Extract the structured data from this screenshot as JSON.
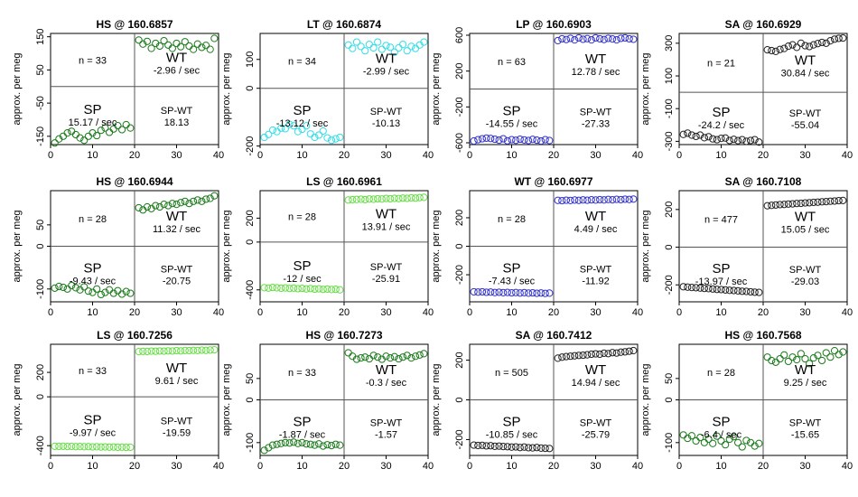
{
  "figure": {
    "y_axis_label": "approx. per meg",
    "n_prefix": "n = ",
    "left_label": "SP",
    "right_label": "WT",
    "diff_label": "SP-WT",
    "rate_suffix": " / sec"
  },
  "chart_data": [
    {
      "type": "scatter",
      "title": "HS @ 160.6857",
      "color": "#1a7a1a",
      "n": 33,
      "sp_rate": "15.17",
      "wt_rate": "-2.96",
      "diff": "18.13",
      "xlim": [
        0,
        40
      ],
      "ylim": [
        -175,
        160
      ],
      "xticks": [
        0,
        10,
        20,
        30,
        40
      ],
      "yticks": [
        150,
        50,
        -50,
        -150
      ],
      "split_x": 20,
      "hline_y": 0,
      "sp_x": [
        1,
        2,
        3,
        4,
        5,
        6,
        7,
        8,
        9,
        10,
        11,
        12,
        13,
        14,
        15,
        16,
        17,
        18,
        19
      ],
      "sp_y": [
        -170,
        -158,
        -150,
        -140,
        -135,
        -145,
        -155,
        -162,
        -150,
        -140,
        -148,
        -132,
        -125,
        -138,
        -128,
        -118,
        -130,
        -115,
        -125
      ],
      "wt_x": [
        21,
        22,
        23,
        24,
        25,
        26,
        27,
        28,
        29,
        30,
        31,
        32,
        33,
        34,
        35,
        36,
        37,
        38,
        39
      ],
      "wt_y": [
        140,
        128,
        136,
        115,
        130,
        122,
        138,
        125,
        115,
        130,
        120,
        135,
        122,
        112,
        128,
        118,
        124,
        112,
        145
      ]
    },
    {
      "type": "scatter",
      "title": "LT @ 160.6874",
      "color": "#33dde8",
      "n": 34,
      "sp_rate": "-13.12",
      "wt_rate": "-2.99",
      "diff": "-10.13",
      "xlim": [
        0,
        40
      ],
      "ylim": [
        -195,
        190
      ],
      "xticks": [
        0,
        10,
        20,
        30,
        40
      ],
      "yticks": [
        100,
        0,
        -200
      ],
      "split_x": 20,
      "hline_y": 0,
      "sp_x": [
        1,
        2,
        3,
        4,
        5,
        6,
        7,
        8,
        9,
        10,
        11,
        12,
        13,
        14,
        15,
        16,
        17,
        18,
        19
      ],
      "sp_y": [
        -170,
        -160,
        -145,
        -150,
        -138,
        -140,
        -125,
        -130,
        -150,
        -142,
        -130,
        -158,
        -170,
        -162,
        -148,
        -172,
        -180,
        -175,
        -170
      ],
      "wt_x": [
        21,
        22,
        23,
        24,
        25,
        26,
        27,
        28,
        29,
        30,
        31,
        32,
        33,
        34,
        35,
        36,
        37,
        38,
        39
      ],
      "wt_y": [
        150,
        138,
        160,
        145,
        130,
        152,
        140,
        160,
        135,
        148,
        142,
        125,
        140,
        152,
        130,
        145,
        138,
        150,
        160
      ]
    },
    {
      "type": "scatter",
      "title": "LP @ 160.6903",
      "color": "#3333cc",
      "n": 63,
      "sp_rate": "-14.55",
      "wt_rate": "12.78",
      "diff": "-27.33",
      "xlim": [
        0,
        40
      ],
      "ylim": [
        -620,
        620
      ],
      "xticks": [
        0,
        10,
        20,
        30,
        40
      ],
      "yticks": [
        600,
        200,
        -200,
        -600
      ],
      "split_x": 20,
      "hline_y": 0,
      "sp_x": [
        1,
        2,
        3,
        4,
        5,
        6,
        7,
        8,
        9,
        10,
        11,
        12,
        13,
        14,
        15,
        16,
        17,
        18,
        19
      ],
      "sp_y": [
        -580,
        -565,
        -555,
        -548,
        -552,
        -560,
        -570,
        -555,
        -578,
        -565,
        -572,
        -560,
        -568,
        -575,
        -562,
        -570,
        -580,
        -565,
        -575
      ],
      "wt_x": [
        21,
        22,
        23,
        24,
        25,
        26,
        27,
        28,
        29,
        30,
        31,
        32,
        33,
        34,
        35,
        36,
        37,
        38,
        39
      ],
      "wt_y": [
        540,
        560,
        552,
        565,
        548,
        570,
        555,
        562,
        548,
        570,
        560,
        552,
        565,
        558,
        548,
        565,
        570,
        560,
        555
      ]
    },
    {
      "type": "scatter",
      "title": "SA @ 160.6929",
      "color": "#222222",
      "n": 21,
      "sp_rate": "-24.2",
      "wt_rate": "30.84",
      "diff": "-55.04",
      "xlim": [
        0,
        40
      ],
      "ylim": [
        -320,
        360
      ],
      "xticks": [
        0,
        10,
        20,
        30,
        40
      ],
      "yticks": [
        300,
        100,
        -100,
        -300
      ],
      "split_x": 20,
      "hline_y": 0,
      "sp_x": [
        1,
        2,
        3,
        4,
        5,
        6,
        7,
        8,
        9,
        10,
        11,
        12,
        13,
        14,
        15,
        16,
        17,
        18,
        19
      ],
      "sp_y": [
        -258,
        -250,
        -262,
        -270,
        -262,
        -278,
        -272,
        -285,
        -290,
        -282,
        -280,
        -295,
        -288,
        -296,
        -290,
        -300,
        -295,
        -290,
        -305
      ],
      "wt_x": [
        21,
        22,
        23,
        24,
        25,
        26,
        27,
        28,
        29,
        30,
        31,
        32,
        33,
        34,
        35,
        36,
        37,
        38,
        39
      ],
      "wt_y": [
        260,
        255,
        250,
        262,
        268,
        282,
        290,
        275,
        300,
        285,
        280,
        290,
        298,
        305,
        300,
        315,
        325,
        330,
        332
      ]
    },
    {
      "type": "scatter",
      "title": "HS @ 160.6944",
      "color": "#1a7a1a",
      "n": 28,
      "sp_rate": "-9.43",
      "wt_rate": "11.32",
      "diff": "-20.75",
      "xlim": [
        0,
        40
      ],
      "ylim": [
        -130,
        130
      ],
      "xticks": [
        0,
        10,
        20,
        30,
        40
      ],
      "yticks": [
        50,
        0,
        -100
      ],
      "split_x": 20,
      "hline_y": 0,
      "sp_x": [
        1,
        2,
        3,
        4,
        5,
        6,
        7,
        8,
        9,
        10,
        11,
        12,
        13,
        14,
        15,
        16,
        17,
        18,
        19
      ],
      "sp_y": [
        -98,
        -94,
        -96,
        -100,
        -92,
        -97,
        -102,
        -95,
        -105,
        -108,
        -100,
        -113,
        -108,
        -102,
        -110,
        -104,
        -112,
        -106,
        -110
      ],
      "wt_x": [
        21,
        22,
        23,
        24,
        25,
        26,
        27,
        28,
        29,
        30,
        31,
        32,
        33,
        34,
        35,
        36,
        37,
        38,
        39
      ],
      "wt_y": [
        90,
        85,
        92,
        88,
        95,
        92,
        98,
        95,
        100,
        98,
        102,
        105,
        100,
        105,
        108,
        105,
        110,
        112,
        118
      ]
    },
    {
      "type": "scatter",
      "title": "LS @ 160.6961",
      "color": "#66dd44",
      "n": 28,
      "sp_rate": "-12",
      "wt_rate": "13.91",
      "diff": "-25.91",
      "xlim": [
        0,
        40
      ],
      "ylim": [
        -500,
        430
      ],
      "xticks": [
        0,
        10,
        20,
        30,
        40
      ],
      "yticks": [
        200,
        0,
        -400
      ],
      "split_x": 20,
      "hline_y": 0,
      "sp_x": [
        1,
        2,
        3,
        4,
        5,
        6,
        7,
        8,
        9,
        10,
        11,
        12,
        13,
        14,
        15,
        16,
        17,
        18,
        19
      ],
      "sp_y": [
        -382,
        -385,
        -380,
        -383,
        -386,
        -384,
        -388,
        -385,
        -390,
        -387,
        -392,
        -389,
        -394,
        -391,
        -396,
        -393,
        -397,
        -395,
        -400
      ],
      "wt_x": [
        21,
        22,
        23,
        24,
        25,
        26,
        27,
        28,
        29,
        30,
        31,
        32,
        33,
        34,
        35,
        36,
        37,
        38,
        39
      ],
      "wt_y": [
        352,
        355,
        356,
        358,
        355,
        360,
        358,
        362,
        360,
        365,
        362,
        366,
        364,
        368,
        366,
        370,
        368,
        372,
        374
      ]
    },
    {
      "type": "scatter",
      "title": "WT @ 160.6977",
      "color": "#3333cc",
      "n": 28,
      "sp_rate": "-7.43",
      "wt_rate": "4.49",
      "diff": "-11.92",
      "xlim": [
        0,
        40
      ],
      "ylim": [
        -390,
        390
      ],
      "xticks": [
        0,
        10,
        20,
        30,
        40
      ],
      "yticks": [
        200,
        0,
        -200
      ],
      "split_x": 20,
      "hline_y": 0,
      "sp_x": [
        1,
        2,
        3,
        4,
        5,
        6,
        7,
        8,
        9,
        10,
        11,
        12,
        13,
        14,
        15,
        16,
        17,
        18,
        19
      ],
      "sp_y": [
        -320,
        -322,
        -320,
        -323,
        -322,
        -325,
        -323,
        -326,
        -324,
        -327,
        -325,
        -328,
        -326,
        -329,
        -327,
        -330,
        -328,
        -331,
        -329
      ],
      "wt_x": [
        21,
        22,
        23,
        24,
        25,
        26,
        27,
        28,
        29,
        30,
        31,
        32,
        33,
        34,
        35,
        36,
        37,
        38,
        39
      ],
      "wt_y": [
        322,
        320,
        323,
        321,
        324,
        322,
        325,
        323,
        326,
        324,
        327,
        325,
        328,
        326,
        329,
        327,
        330,
        328,
        331
      ]
    },
    {
      "type": "scatter",
      "title": "SA @ 160.7108",
      "color": "#222222",
      "n": 477,
      "sp_rate": "-13.97",
      "wt_rate": "15.05",
      "diff": "-29.03",
      "xlim": [
        0,
        40
      ],
      "ylim": [
        -290,
        300
      ],
      "xticks": [
        0,
        10,
        20,
        30,
        40
      ],
      "yticks": [
        200,
        0,
        -200
      ],
      "split_x": 20,
      "hline_y": 0,
      "sp_x": [
        1,
        2,
        3,
        4,
        5,
        6,
        7,
        8,
        9,
        10,
        11,
        12,
        13,
        14,
        15,
        16,
        17,
        18,
        19
      ],
      "sp_y": [
        -210,
        -212,
        -214,
        -215,
        -217,
        -219,
        -220,
        -222,
        -224,
        -225,
        -227,
        -229,
        -230,
        -232,
        -234,
        -235,
        -237,
        -239,
        -240
      ],
      "wt_x": [
        21,
        22,
        23,
        24,
        25,
        26,
        27,
        28,
        29,
        30,
        31,
        32,
        33,
        34,
        35,
        36,
        37,
        38,
        39
      ],
      "wt_y": [
        220,
        222,
        224,
        226,
        227,
        229,
        230,
        232,
        233,
        235,
        236,
        238,
        239,
        241,
        242,
        244,
        245,
        247,
        248
      ]
    },
    {
      "type": "scatter",
      "title": "LS @ 160.7256",
      "color": "#66dd44",
      "n": 33,
      "sp_rate": "-9.97",
      "wt_rate": "9.61",
      "diff": "-19.59",
      "xlim": [
        0,
        40
      ],
      "ylim": [
        -480,
        430
      ],
      "xticks": [
        0,
        10,
        20,
        30,
        40
      ],
      "yticks": [
        200,
        0,
        -400
      ],
      "split_x": 20,
      "hline_y": 0,
      "sp_x": [
        1,
        2,
        3,
        4,
        5,
        6,
        7,
        8,
        9,
        10,
        11,
        12,
        13,
        14,
        15,
        16,
        17,
        18,
        19
      ],
      "sp_y": [
        -405,
        -406,
        -405,
        -407,
        -406,
        -408,
        -407,
        -409,
        -408,
        -410,
        -409,
        -411,
        -410,
        -412,
        -411,
        -413,
        -412,
        -414,
        -413
      ],
      "wt_x": [
        21,
        22,
        23,
        24,
        25,
        26,
        27,
        28,
        29,
        30,
        31,
        32,
        33,
        34,
        35,
        36,
        37,
        38,
        39
      ],
      "wt_y": [
        370,
        372,
        371,
        374,
        373,
        375,
        374,
        376,
        375,
        378,
        376,
        379,
        378,
        380,
        379,
        382,
        380,
        383,
        385
      ]
    },
    {
      "type": "scatter",
      "title": "HS @ 160.7273",
      "color": "#1a7a1a",
      "n": 33,
      "sp_rate": "-1.87",
      "wt_rate": "-0.3",
      "diff": "-1.57",
      "xlim": [
        0,
        40
      ],
      "ylim": [
        -130,
        130
      ],
      "xticks": [
        0,
        10,
        20,
        30,
        40
      ],
      "yticks": [
        50,
        0,
        -100
      ],
      "split_x": 20,
      "hline_y": 0,
      "sp_x": [
        1,
        2,
        3,
        4,
        5,
        6,
        7,
        8,
        9,
        10,
        11,
        12,
        13,
        14,
        15,
        16,
        17,
        18,
        19
      ],
      "sp_y": [
        -118,
        -112,
        -106,
        -104,
        -102,
        -100,
        -101,
        -99,
        -102,
        -100,
        -103,
        -104,
        -106,
        -103,
        -108,
        -105,
        -107,
        -104,
        -106
      ],
      "wt_x": [
        21,
        22,
        23,
        24,
        25,
        26,
        27,
        28,
        29,
        30,
        31,
        32,
        33,
        34,
        35,
        36,
        37,
        38,
        39
      ],
      "wt_y": [
        110,
        102,
        95,
        98,
        100,
        96,
        104,
        100,
        95,
        102,
        98,
        101,
        96,
        100,
        104,
        98,
        102,
        105,
        108
      ]
    },
    {
      "type": "scatter",
      "title": "SA @ 160.7412",
      "color": "#222222",
      "n": 505,
      "sp_rate": "-10.85",
      "wt_rate": "14.94",
      "diff": "-25.79",
      "xlim": [
        0,
        40
      ],
      "ylim": [
        -280,
        280
      ],
      "xticks": [
        0,
        10,
        20,
        30,
        40
      ],
      "yticks": [
        200,
        0,
        -200
      ],
      "split_x": 20,
      "hline_y": 0,
      "sp_x": [
        1,
        2,
        3,
        4,
        5,
        6,
        7,
        8,
        9,
        10,
        11,
        12,
        13,
        14,
        15,
        16,
        17,
        18,
        19
      ],
      "sp_y": [
        -228,
        -230,
        -229,
        -232,
        -231,
        -234,
        -233,
        -235,
        -236,
        -238,
        -237,
        -240,
        -238,
        -241,
        -242,
        -240,
        -243,
        -244,
        -245
      ],
      "wt_x": [
        21,
        22,
        23,
        24,
        25,
        26,
        27,
        28,
        29,
        30,
        31,
        32,
        33,
        34,
        35,
        36,
        37,
        38,
        39
      ],
      "wt_y": [
        210,
        215,
        218,
        220,
        222,
        224,
        225,
        227,
        230,
        232,
        230,
        235,
        233,
        238,
        236,
        240,
        242,
        245,
        248
      ]
    },
    {
      "type": "scatter",
      "title": "HS @ 160.7568",
      "color": "#1a7a1a",
      "n": 28,
      "sp_rate": "-6.4",
      "wt_rate": "9.25",
      "diff": "-15.65",
      "xlim": [
        0,
        40
      ],
      "ylim": [
        -130,
        130
      ],
      "xticks": [
        0,
        10,
        20,
        30,
        40
      ],
      "yticks": [
        50,
        0,
        -100
      ],
      "split_x": 20,
      "hline_y": 0,
      "sp_x": [
        1,
        2,
        3,
        4,
        5,
        6,
        7,
        8,
        9,
        10,
        11,
        12,
        13,
        14,
        15,
        16,
        17,
        18,
        19
      ],
      "sp_y": [
        -82,
        -90,
        -84,
        -96,
        -88,
        -100,
        -92,
        -102,
        -85,
        -96,
        -105,
        -92,
        -86,
        -100,
        -110,
        -95,
        -100,
        -108,
        -102
      ],
      "wt_x": [
        21,
        22,
        23,
        24,
        25,
        26,
        27,
        28,
        29,
        30,
        31,
        32,
        33,
        34,
        35,
        36,
        37,
        38,
        39
      ],
      "wt_y": [
        100,
        92,
        88,
        96,
        105,
        90,
        100,
        94,
        108,
        96,
        85,
        98,
        104,
        92,
        110,
        100,
        115,
        106,
        112
      ]
    }
  ]
}
